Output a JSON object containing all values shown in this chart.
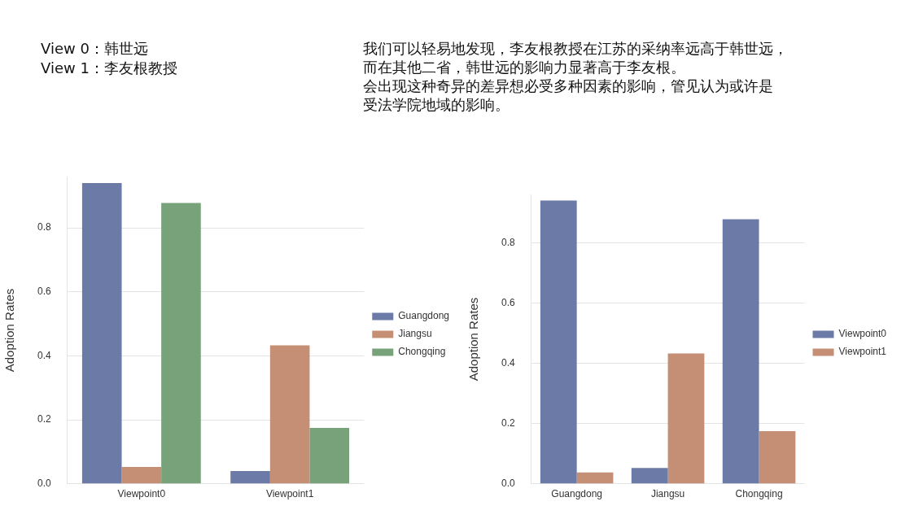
{
  "chart_data": [
    {
      "type": "bar",
      "categories": [
        "Viewpoint0",
        "Viewpoint1"
      ],
      "ylabel": "Adoption Rates",
      "series": [
        {
          "name": "Guangdong",
          "color": "#6c7aa8",
          "values": [
            0.94,
            0.04
          ]
        },
        {
          "name": "Jiangsu",
          "color": "#c48f74",
          "values": [
            0.053,
            0.433
          ]
        },
        {
          "name": "Chongqing",
          "color": "#77a27a",
          "values": [
            0.878,
            0.175
          ]
        }
      ],
      "ylim": [
        0,
        0.96
      ],
      "yticks": [
        {
          "value": 0,
          "label": "0.0"
        },
        0.2,
        0.4,
        0.6,
        0.8
      ],
      "grid": "y",
      "legend": "right",
      "annotations": [
        "View 0：韩世远",
        "View 1：李友根教授"
      ]
    },
    {
      "type": "bar",
      "categories": [
        "Guangdong",
        "Jiangsu",
        "Chongqing"
      ],
      "ylabel": "Adoption Rates",
      "series": [
        {
          "name": "Viewpoint0",
          "color": "#6c7aa8",
          "values": [
            0.94,
            0.053,
            0.878
          ]
        },
        {
          "name": "Viewpoint1",
          "color": "#c48f74",
          "values": [
            0.038,
            0.433,
            0.175
          ]
        }
      ],
      "ylim": [
        0,
        0.96
      ],
      "yticks": [
        {
          "value": 0,
          "label": "0.0"
        },
        0.2,
        0.4,
        0.6,
        0.8
      ],
      "grid": "y",
      "legend": "right",
      "annotations": [
        "我们可以轻易地发现，李友根教授在江苏的采纳率远高于韩世远，",
        "而在其他二省，韩世远的影响力显著高于李友根。",
        "会出现这种奇异的差异想必受多种因素的影响，管见认为或许是",
        "受法学院地域的影响。"
      ]
    }
  ]
}
